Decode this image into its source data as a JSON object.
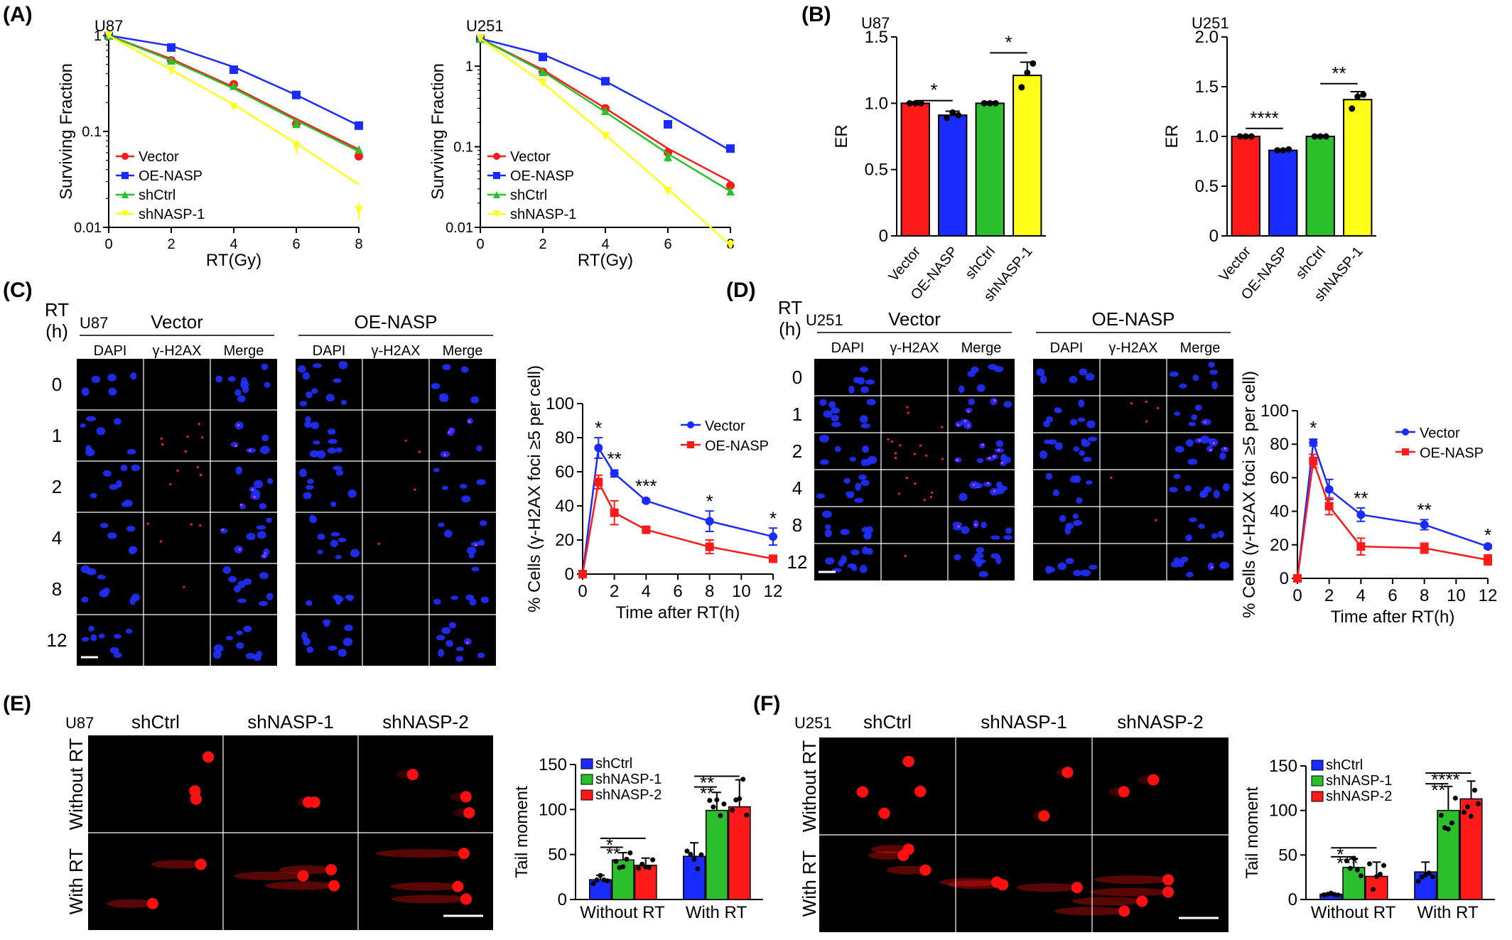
{
  "colors": {
    "red": "#ff1a1a",
    "blue": "#1a2bff",
    "green": "#2bbf2b",
    "yellow": "#ffff1a",
    "micro_bg": "#000000",
    "dapi": "#2130ff",
    "foci": "#ff2020",
    "comet": "#ff1010"
  },
  "panels": {
    "A": {
      "label": "(A)",
      "charts": [
        {
          "type": "line",
          "cell_line": "U87",
          "xlabel": "RT(Gy)",
          "ylabel": "Surviving Fraction",
          "xlim": [
            0,
            8
          ],
          "ylim": [
            0.01,
            1
          ],
          "yscale": "log",
          "xticks": [
            0,
            2,
            4,
            6,
            8
          ],
          "yticks": [
            0.01,
            0.1,
            1
          ],
          "ytick_labels": [
            "0.01",
            "0.1",
            "1"
          ],
          "legend": "lower-left",
          "series": [
            {
              "name": "Vector",
              "color": "red",
              "marker": "circle",
              "x": [
                0,
                2,
                4,
                6,
                8
              ],
              "y": [
                1,
                0.55,
                0.31,
                0.12,
                0.055
              ],
              "fit": [
                1,
                0.57,
                0.29,
                0.135,
                0.065
              ]
            },
            {
              "name": "OE-NASP",
              "color": "blue",
              "marker": "square",
              "x": [
                0,
                2,
                4,
                6,
                8
              ],
              "y": [
                1,
                0.75,
                0.44,
                0.24,
                0.115
              ],
              "fit": [
                1,
                0.78,
                0.47,
                0.24,
                0.115
              ]
            },
            {
              "name": "shCtrl",
              "color": "green",
              "marker": "triangle",
              "x": [
                0,
                2,
                4,
                6,
                8
              ],
              "y": [
                1,
                0.55,
                0.3,
                0.12,
                0.065
              ],
              "fit": [
                1,
                0.55,
                0.28,
                0.13,
                0.062
              ]
            },
            {
              "name": "shNASP-1",
              "color": "yellow",
              "marker": "triangle-down",
              "x": [
                0,
                2,
                4,
                6,
                8
              ],
              "y": [
                1,
                0.43,
                0.18,
                0.07,
                0.015
              ],
              "err": [
                0,
                0,
                0,
                0.012,
                0.003
              ],
              "fit": [
                1,
                0.44,
                0.19,
                0.075,
                0.028
              ]
            }
          ]
        },
        {
          "type": "line",
          "cell_line": "U251",
          "xlabel": "RT(Gy)",
          "ylabel": "Surviving Fraction",
          "xlim": [
            0,
            8
          ],
          "ylim": [
            0.01,
            2.4
          ],
          "yscale": "log",
          "xticks": [
            0,
            2,
            4,
            6,
            8
          ],
          "yticks": [
            0.01,
            0.1,
            1
          ],
          "ytick_labels": [
            "0.01",
            "0.1",
            "1"
          ],
          "legend": "lower-left",
          "series": [
            {
              "name": "Vector",
              "color": "red",
              "marker": "circle",
              "x": [
                0,
                2,
                4,
                6,
                8
              ],
              "y": [
                2.2,
                0.85,
                0.3,
                0.085,
                0.033
              ],
              "fit": [
                2.2,
                0.9,
                0.3,
                0.095,
                0.037
              ]
            },
            {
              "name": "OE-NASP",
              "color": "blue",
              "marker": "square",
              "x": [
                0,
                2,
                4,
                6,
                8
              ],
              "y": [
                2.2,
                1.3,
                0.65,
                0.19,
                0.095
              ],
              "fit": [
                2.2,
                1.4,
                0.65,
                0.25,
                0.09
              ]
            },
            {
              "name": "shCtrl",
              "color": "green",
              "marker": "triangle",
              "x": [
                0,
                2,
                4,
                6,
                8
              ],
              "y": [
                2.2,
                0.85,
                0.28,
                0.075,
                0.028
              ],
              "err": [
                0,
                0,
                0,
                0.01,
                0.003
              ],
              "fit": [
                2.2,
                0.86,
                0.27,
                0.082,
                0.028
              ]
            },
            {
              "name": "shNASP-1",
              "color": "yellow",
              "marker": "triangle-down",
              "x": [
                0,
                2,
                4,
                6,
                8
              ],
              "y": [
                2.2,
                0.62,
                0.135,
                0.028,
                0.006
              ],
              "fit": [
                2.2,
                0.62,
                0.14,
                0.03,
                0.006
              ]
            }
          ]
        }
      ]
    },
    "B": {
      "label": "(B)",
      "charts": [
        {
          "type": "bar",
          "cell_line": "U87",
          "ylabel": "ER",
          "ylim": [
            0,
            1.5
          ],
          "yticks": [
            0,
            0.5,
            1.0,
            1.5
          ],
          "ytick_labels": [
            "0",
            "0.5",
            "1.0",
            "1.5"
          ],
          "categories": [
            "Vector",
            "OE-NASP",
            "shCtrl",
            "shNASP-1"
          ],
          "colors": [
            "red",
            "blue",
            "green",
            "yellow"
          ],
          "values": [
            1.0,
            0.91,
            1.0,
            1.21
          ],
          "err": [
            0.01,
            0.03,
            0.01,
            0.1
          ],
          "points": [
            [
              1.0,
              1.0,
              1.0
            ],
            [
              0.89,
              0.93,
              0.91
            ],
            [
              1.0,
              1.0,
              1.0
            ],
            [
              1.12,
              1.23,
              1.3
            ]
          ],
          "sig": [
            {
              "from": 0,
              "to": 1,
              "label": "*",
              "y": 1.02
            },
            {
              "from": 2,
              "to": 3,
              "label": "*",
              "y": 1.38
            }
          ]
        },
        {
          "type": "bar",
          "cell_line": "U251",
          "ylabel": "ER",
          "ylim": [
            0,
            2.0
          ],
          "yticks": [
            0,
            0.5,
            1.0,
            1.5,
            2.0
          ],
          "ytick_labels": [
            "0",
            "0.5",
            "1.0",
            "1.5",
            "2.0"
          ],
          "categories": [
            "Vector",
            "OE-NASP",
            "shCtrl",
            "shNASP-1"
          ],
          "colors": [
            "red",
            "blue",
            "green",
            "yellow"
          ],
          "values": [
            1.0,
            0.86,
            1.0,
            1.37
          ],
          "err": [
            0.01,
            0.01,
            0.01,
            0.08
          ],
          "points": [
            [
              1.0,
              1.0,
              1.0
            ],
            [
              0.86,
              0.86,
              0.87
            ],
            [
              1.0,
              1.0,
              1.0
            ],
            [
              1.28,
              1.4,
              1.42
            ]
          ],
          "sig": [
            {
              "from": 0,
              "to": 1,
              "label": "****",
              "y": 1.08
            },
            {
              "from": 2,
              "to": 3,
              "label": "**",
              "y": 1.53
            }
          ]
        }
      ]
    },
    "C": {
      "label": "(C)",
      "rt_label": "RT",
      "h_label": "(h)",
      "cell_line": "U87",
      "groups": [
        "Vector",
        "OE-NASP"
      ],
      "channels": [
        "DAPI",
        "γ-H2AX",
        "Merge"
      ],
      "rows": [
        "0",
        "1",
        "2",
        "4",
        "8",
        "12"
      ],
      "chart": {
        "type": "line",
        "xlabel": "Time after RT(h)",
        "ylabel": "% Cells (γ-H2AX foci ≥5 per cell)",
        "xlim": [
          0,
          12
        ],
        "ylim": [
          0,
          100
        ],
        "xticks": [
          0,
          2,
          4,
          6,
          8,
          10,
          12
        ],
        "yticks": [
          0,
          20,
          40,
          60,
          80,
          100
        ],
        "legend": "top-right",
        "series": [
          {
            "name": "Vector",
            "color": "blue",
            "marker": "circle",
            "x": [
              0,
              1,
              2,
              4,
              8,
              12
            ],
            "y": [
              0,
              74,
              59,
              43,
              31,
              22
            ],
            "err": [
              0,
              6,
              2,
              1,
              6,
              5
            ]
          },
          {
            "name": "OE-NASP",
            "color": "red",
            "marker": "square",
            "x": [
              0,
              1,
              2,
              4,
              8,
              12
            ],
            "y": [
              0,
              54,
              36,
              26,
              16,
              9
            ],
            "err": [
              0,
              4,
              7,
              1,
              4,
              1
            ]
          }
        ],
        "sig": [
          {
            "x": 1,
            "label": "*",
            "y": 82
          },
          {
            "x": 2,
            "label": "**",
            "y": 64
          },
          {
            "x": 4,
            "label": "***",
            "y": 48
          },
          {
            "x": 8,
            "label": "*",
            "y": 39
          },
          {
            "x": 12,
            "label": "*",
            "y": 29
          }
        ]
      }
    },
    "D": {
      "label": "(D)",
      "rt_label": "RT",
      "h_label": "(h)",
      "cell_line": "U251",
      "groups": [
        "Vector",
        "OE-NASP"
      ],
      "channels": [
        "DAPI",
        "γ-H2AX",
        "Merge"
      ],
      "rows": [
        "0",
        "1",
        "2",
        "4",
        "8",
        "12"
      ],
      "chart": {
        "type": "line",
        "xlabel": "Time after RT(h)",
        "ylabel": "% Cells (γ-H2AX foci ≥5 per cell)",
        "xlim": [
          0,
          12
        ],
        "ylim": [
          0,
          100
        ],
        "xticks": [
          0,
          2,
          4,
          6,
          8,
          10,
          12
        ],
        "yticks": [
          0,
          20,
          40,
          60,
          80,
          100
        ],
        "legend": "top-right",
        "series": [
          {
            "name": "Vector",
            "color": "blue",
            "marker": "circle",
            "x": [
              0,
              1,
              2,
              4,
              8,
              12
            ],
            "y": [
              0,
              81,
              53,
              38,
              32,
              19
            ],
            "err": [
              0,
              2,
              6,
              4,
              3,
              1
            ]
          },
          {
            "name": "OE-NASP",
            "color": "red",
            "marker": "square",
            "x": [
              0,
              1,
              2,
              4,
              8,
              12
            ],
            "y": [
              0,
              70,
              43,
              19,
              18,
              11
            ],
            "err": [
              0,
              4,
              5,
              5,
              3,
              3
            ]
          }
        ],
        "sig": [
          {
            "x": 1,
            "label": "*",
            "y": 86
          },
          {
            "x": 4,
            "label": "**",
            "y": 44
          },
          {
            "x": 8,
            "label": "**",
            "y": 37
          },
          {
            "x": 12,
            "label": "*",
            "y": 22
          }
        ]
      }
    },
    "E": {
      "label": "(E)",
      "cell_line": "U87",
      "columns": [
        "shCtrl",
        "shNASP-1",
        "shNASP-2"
      ],
      "rows": [
        "Without RT",
        "With RT"
      ],
      "chart": {
        "type": "bar",
        "ylabel": "Tail moment",
        "ylim": [
          0,
          150
        ],
        "yticks": [
          0,
          50,
          100,
          150
        ],
        "groups": [
          "Without RT",
          "With RT"
        ],
        "series": [
          {
            "name": "shCtrl",
            "color": "blue",
            "values": [
              22,
              48
            ],
            "err": [
              5,
              15
            ]
          },
          {
            "name": "shNASP-1",
            "color": "green",
            "values": [
              44,
              99
            ],
            "err": [
              8,
              20
            ]
          },
          {
            "name": "shNASP-2",
            "color": "red",
            "values": [
              38,
              103
            ],
            "err": [
              8,
              30
            ]
          }
        ],
        "legend": "top-left",
        "sig": [
          {
            "g1": 0,
            "s1": 0,
            "g2": 0,
            "s2": 1,
            "label": "**",
            "y": 58
          },
          {
            "g1": 0,
            "s1": 0,
            "g2": 0,
            "s2": 2,
            "label": "*",
            "y": 68
          },
          {
            "g1": 1,
            "s1": 0,
            "g2": 1,
            "s2": 1,
            "label": "**",
            "y": 125
          },
          {
            "g1": 1,
            "s1": 0,
            "g2": 1,
            "s2": 2,
            "label": "**",
            "y": 137
          }
        ]
      }
    },
    "F": {
      "label": "(F)",
      "cell_line": "U251",
      "columns": [
        "shCtrl",
        "shNASP-1",
        "shNASP-2"
      ],
      "rows": [
        "Without RT",
        "With RT"
      ],
      "chart": {
        "type": "bar",
        "ylabel": "Tail moment",
        "ylim": [
          0,
          150
        ],
        "yticks": [
          0,
          50,
          100,
          150
        ],
        "groups": [
          "Without RT",
          "With RT"
        ],
        "series": [
          {
            "name": "shCtrl",
            "color": "blue",
            "values": [
              6,
              31
            ],
            "err": [
              1,
              11
            ]
          },
          {
            "name": "shNASP-1",
            "color": "green",
            "values": [
              36,
              100
            ],
            "err": [
              10,
              27
            ]
          },
          {
            "name": "shNASP-2",
            "color": "red",
            "values": [
              26,
              113
            ],
            "err": [
              16,
              20
            ]
          }
        ],
        "legend": "top-left",
        "sig": [
          {
            "g1": 0,
            "s1": 0,
            "g2": 0,
            "s2": 1,
            "label": "***",
            "y": 48
          },
          {
            "g1": 0,
            "s1": 0,
            "g2": 0,
            "s2": 2,
            "label": "*",
            "y": 58
          },
          {
            "g1": 1,
            "s1": 0,
            "g2": 1,
            "s2": 1,
            "label": "**",
            "y": 130
          },
          {
            "g1": 1,
            "s1": 0,
            "g2": 1,
            "s2": 2,
            "label": "****",
            "y": 142
          }
        ]
      }
    }
  }
}
